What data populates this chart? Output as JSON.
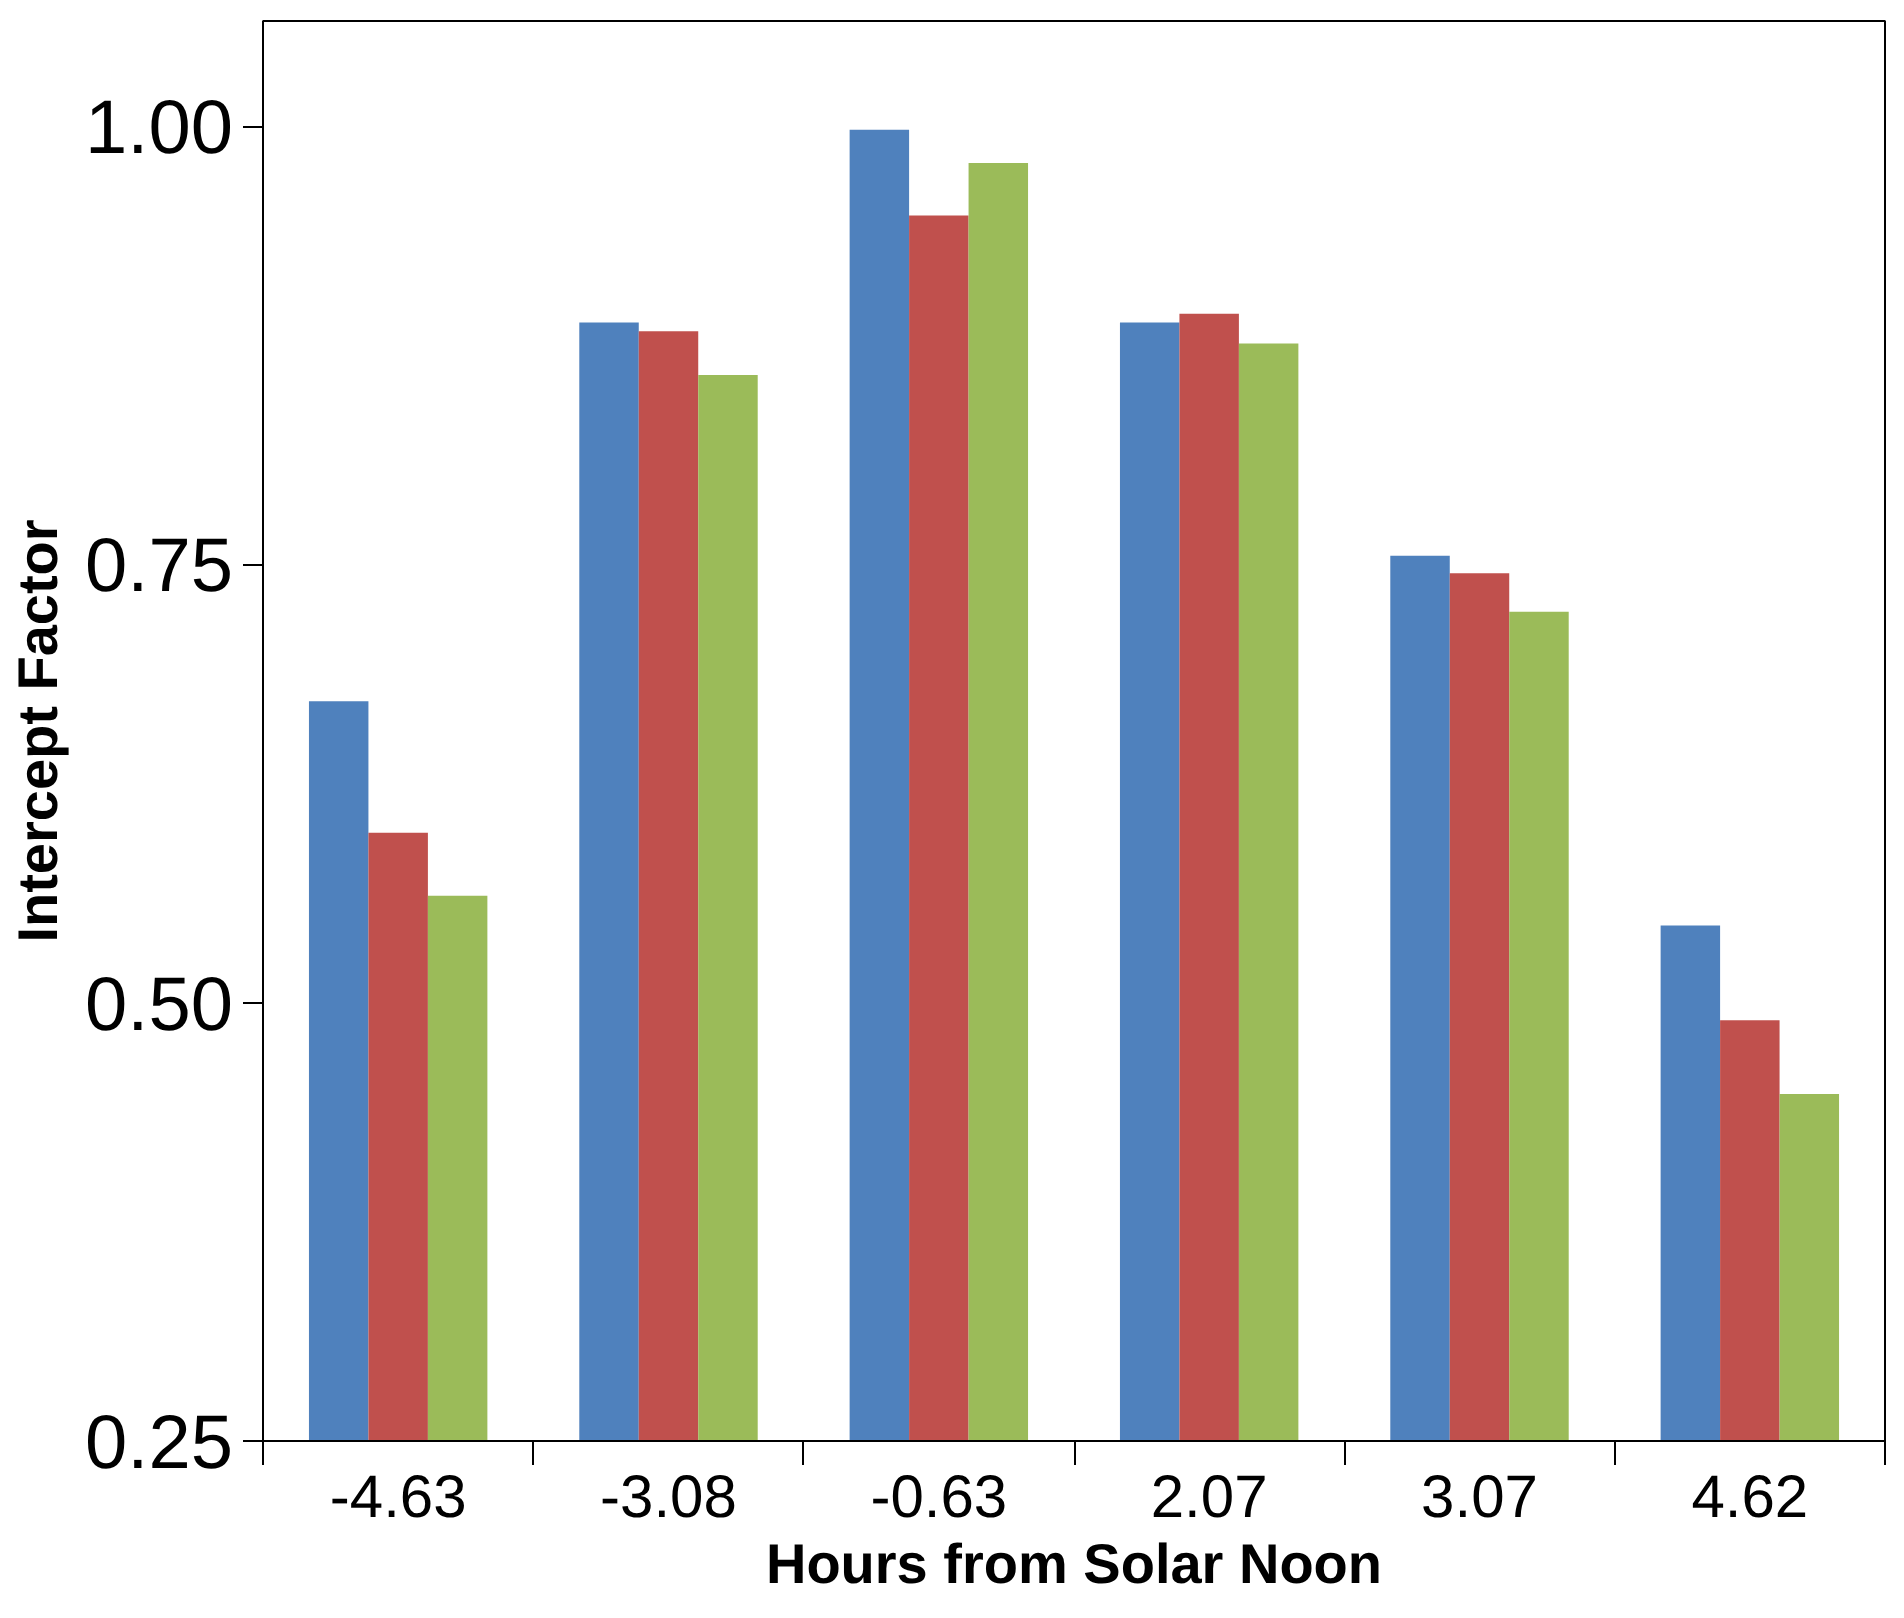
{
  "chart_data": {
    "type": "bar",
    "xlabel": "Hours from Solar Noon",
    "ylabel": "Intercept Factor",
    "categories": [
      "-4.63",
      "-3.08",
      "-0.63",
      "2.07",
      "3.07",
      "4.62"
    ],
    "series": [
      {
        "color": "#4f81bd",
        "values": [
          0.672,
          0.888,
          0.998,
          0.888,
          0.755,
          0.544
        ]
      },
      {
        "color": "#c0504d",
        "values": [
          0.597,
          0.883,
          0.949,
          0.893,
          0.745,
          0.49
        ]
      },
      {
        "color": "#9bbb59",
        "values": [
          0.561,
          0.858,
          0.979,
          0.876,
          0.723,
          0.448
        ]
      }
    ],
    "ylim": [
      0.25,
      1.06
    ],
    "yticks": [
      {
        "value": 0.25,
        "label": "0.25"
      },
      {
        "value": 0.5,
        "label": "0.50"
      },
      {
        "value": 0.75,
        "label": "0.75"
      },
      {
        "value": 1.0,
        "label": "1.00"
      }
    ],
    "grid": false
  }
}
